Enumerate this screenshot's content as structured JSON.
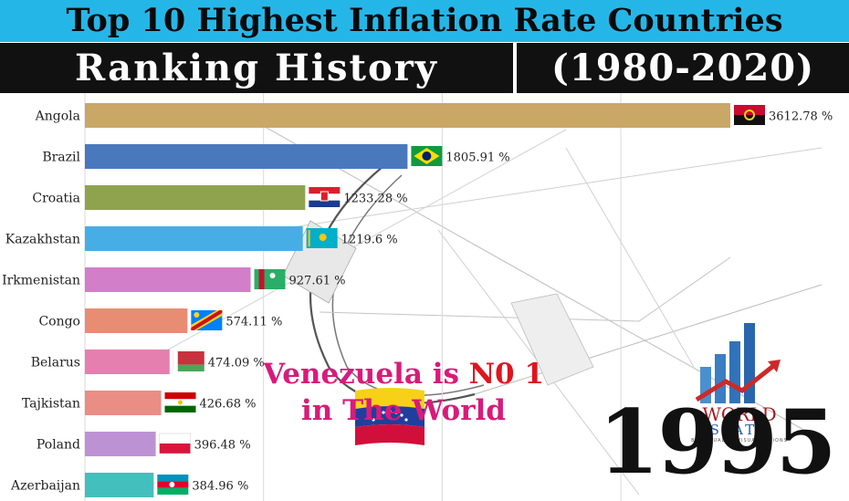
{
  "header": {
    "title": "Top 10 Highest Inflation Rate Countries",
    "subtitle_left": "Ranking History",
    "subtitle_right": "(1980-2020)"
  },
  "callout": {
    "line1_prefix": "Venezuela is ",
    "line1_highlight": "N0 1",
    "line2": "in The World"
  },
  "year": "1995",
  "logo": {
    "word1": "WORLD",
    "word2": "STATS",
    "tagline": "BEST QUALITY VISUALIZATIONS"
  },
  "chart_data": {
    "type": "bar",
    "orientation": "horizontal",
    "title": "Top 10 Highest Inflation Rate Countries",
    "subtitle": "Ranking History (1980-2020)",
    "unit": "%",
    "categories": [
      "Angola",
      "Brazil",
      "Croatia",
      "Kazakhstan",
      "Irkmenistan",
      "Congo",
      "Belarus",
      "Tajkistan",
      "Poland",
      "Azerbaijan"
    ],
    "values": [
      3612.78,
      1805.91,
      1233.28,
      1219.6,
      927.61,
      574.11,
      474.09,
      426.68,
      396.48,
      384.96
    ],
    "value_labels": [
      "3612.78 %",
      "1805.91 %",
      "1233.28 %",
      "1219.6 %",
      "927.61 %",
      "574.11 %",
      "474.09 %",
      "426.68 %",
      "396.48 %",
      "384.96 %"
    ],
    "colors": [
      "#c9a766",
      "#4a78bd",
      "#8fa34f",
      "#47aee5",
      "#d37ec9",
      "#e88c74",
      "#e57fb0",
      "#ea8d84",
      "#bd92d5",
      "#43bfbd"
    ],
    "flags": [
      "angola-flag",
      "brazil-flag",
      "croatia-flag",
      "kazakhstan-flag",
      "turkmenistan-flag",
      "congo-flag",
      "belarus-flag",
      "tajikistan-flag",
      "poland-flag",
      "azerbaijan-flag"
    ],
    "grid": true,
    "xlim": [
      0,
      3800
    ]
  }
}
